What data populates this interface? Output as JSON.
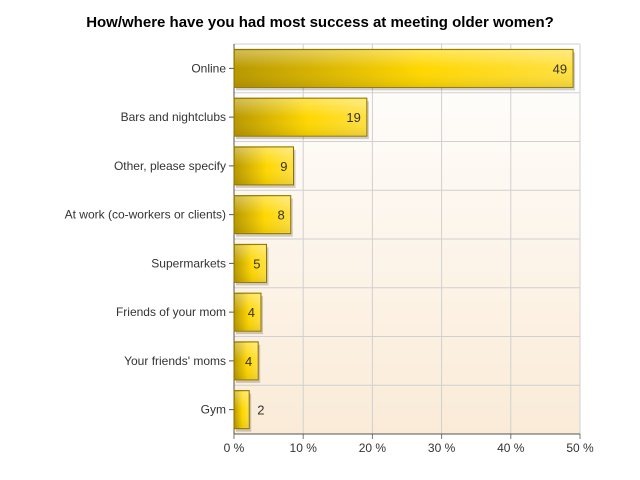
{
  "chart_data": {
    "type": "bar",
    "orientation": "horizontal",
    "title": "How/where have you had most success at meeting older women?",
    "categories": [
      "Online",
      "Bars and nightclubs",
      "Other, please specify",
      "At work (co-workers or clients)",
      "Supermarkets",
      "Friends of your mom",
      "Your friends' moms",
      "Gym"
    ],
    "values": [
      49,
      19,
      9,
      8,
      5,
      4,
      4,
      2
    ],
    "percent_scale": [
      49.0,
      19.2,
      8.6,
      8.2,
      4.7,
      3.9,
      3.5,
      2.2
    ],
    "xlim": [
      0,
      50
    ],
    "xticks": [
      "0 %",
      "10 %",
      "20 %",
      "30 %",
      "40 %",
      "50 %"
    ],
    "grid": true,
    "colors": {
      "bar_light": "#ffe040",
      "bar_mid": "#ffd700",
      "bar_dark": "#b89800",
      "bar_edge": "#8a7000",
      "plot_bg_top": "#ffffff",
      "plot_bg_bottom": "#faebd7",
      "grid": "#d0d0d0"
    }
  }
}
